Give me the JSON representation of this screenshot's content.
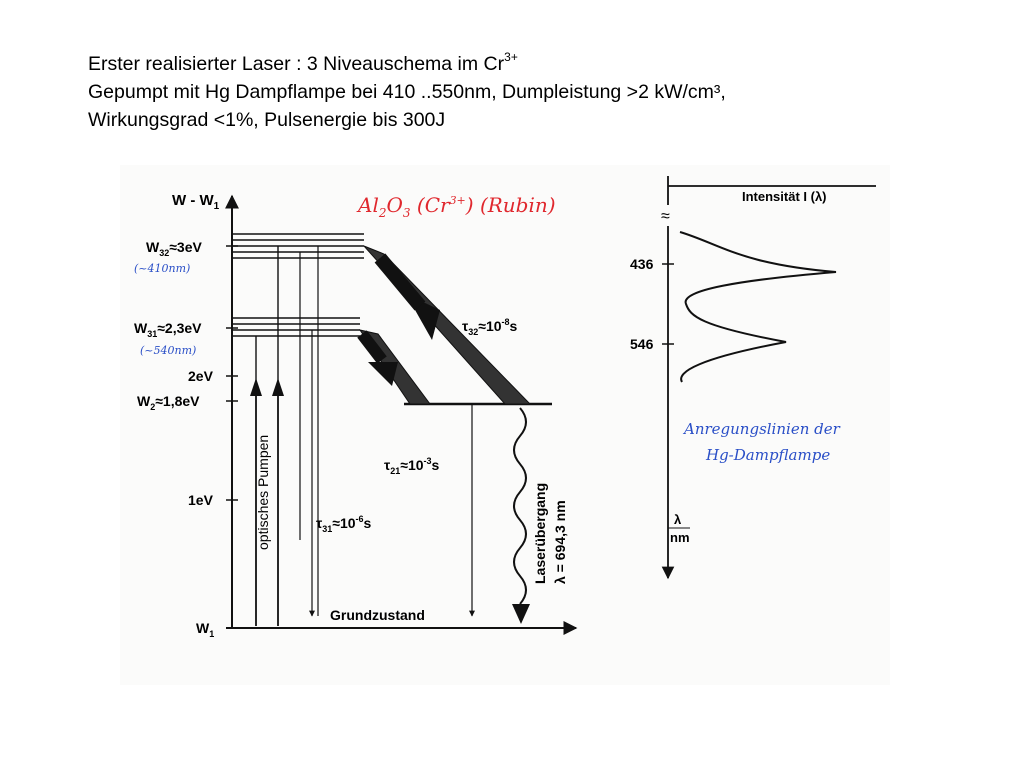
{
  "title": {
    "line1_main": "Erster realisierter Laser : 3 Niveauschema im Cr",
    "line1_sup": "3+",
    "line2": "Gepumpt mit Hg Dampflampe bei 410 ..550nm, Dumpleistung >2 kW/cm³,",
    "line3": "Wirkungsgrad <1%, Pulsenergie bis 300J"
  },
  "energy_diagram": {
    "axis_label": "W - W",
    "axis_label_sub": "1",
    "levels": {
      "w32": {
        "name": "W",
        "sub": "32",
        "value": "≈3eV",
        "note": "(~410nm)"
      },
      "w31": {
        "name": "W",
        "sub": "31",
        "value": "≈2,3eV",
        "note": "(~540nm)"
      },
      "two_ev": "2eV",
      "w2": {
        "name": "W",
        "sub": "2",
        "value": "≈1,8eV"
      },
      "one_ev": "1eV",
      "w1": {
        "name": "W",
        "sub": "1"
      }
    },
    "material": {
      "prefix": "Al",
      "sub1": "2",
      "mid": "O",
      "sub2": "3",
      "rest": " (Cr",
      "sup": "3+",
      "suffix": ") (Rubin)"
    },
    "pumping_label": "optisches Pumpen",
    "tau32": {
      "sym": "τ",
      "sub": "32",
      "val": "≈10",
      "exp": "-8",
      "unit": "s"
    },
    "tau31": {
      "sym": "τ",
      "sub": "31",
      "val": "≈10",
      "exp": "-6",
      "unit": "s"
    },
    "tau21": {
      "sym": "τ",
      "sub": "21",
      "val": "≈10",
      "exp": "-3",
      "unit": "s"
    },
    "laser_line1": "Laserübergang",
    "laser_line2": "λ = 694,3 nm",
    "ground_state": "Grundzustand"
  },
  "spectrum": {
    "axis_label": "Intensität I (λ)",
    "tick_436": "436",
    "tick_546": "546",
    "x_unit_top": "λ",
    "x_unit_bottom": "nm",
    "note_line1": "Anregungslinien der",
    "note_line2": "Hg-Dampflampe",
    "break_symbol": "≈"
  },
  "colors": {
    "annotation_red": "#e0282e",
    "annotation_blue": "#2a4fc7",
    "ink": "#111111"
  }
}
